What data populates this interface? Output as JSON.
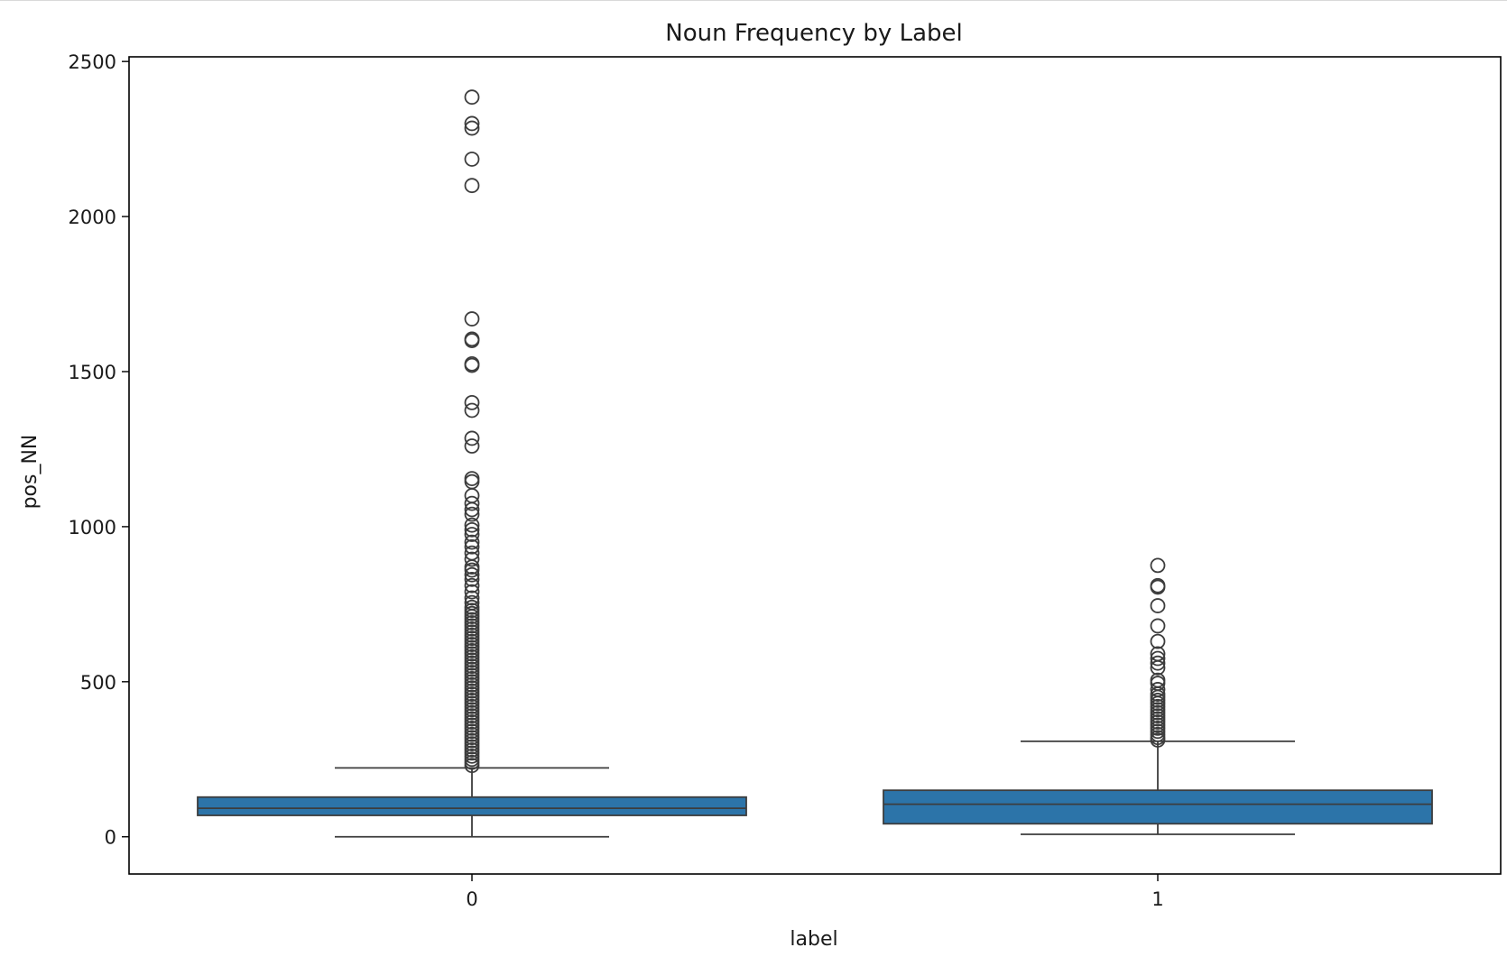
{
  "chart_data": {
    "type": "box",
    "title": "Noun Frequency by Label",
    "xlabel": "label",
    "ylabel": "pos_NN",
    "categories": [
      "0",
      "1"
    ],
    "ylim": [
      -120,
      2515
    ],
    "yticks": [
      0,
      500,
      1000,
      1500,
      2000,
      2500
    ],
    "grid": false,
    "legend": "none",
    "colors": {
      "box_fill": "#2c74a9",
      "line": "#3d3d3d",
      "axis": "#000000"
    },
    "boxes": [
      {
        "category": "0",
        "whisker_low": 0,
        "q1": 69,
        "median": 92,
        "q3": 128,
        "whisker_high": 222,
        "outliers": [
          2385,
          2300,
          2285,
          2185,
          2100,
          1670,
          1605,
          1600,
          1525,
          1520,
          1400,
          1375,
          1285,
          1260,
          1155,
          1145,
          1100,
          1075,
          1055,
          1040,
          1005,
          990,
          975,
          950,
          935,
          915,
          895,
          870,
          860,
          845,
          830,
          810,
          790,
          770,
          755,
          740,
          730,
          720,
          710,
          700,
          690,
          680,
          670,
          660,
          650,
          640,
          630,
          620,
          610,
          600,
          590,
          580,
          570,
          560,
          550,
          540,
          530,
          520,
          510,
          500,
          490,
          480,
          470,
          460,
          450,
          440,
          430,
          420,
          410,
          400,
          390,
          380,
          370,
          360,
          350,
          340,
          330,
          320,
          310,
          300,
          290,
          280,
          270,
          260,
          250,
          240,
          230
        ]
      },
      {
        "category": "1",
        "whisker_low": 8,
        "q1": 42,
        "median": 105,
        "q3": 150,
        "whisker_high": 308,
        "outliers": [
          875,
          810,
          805,
          745,
          680,
          630,
          590,
          575,
          560,
          545,
          505,
          495,
          475,
          460,
          450,
          440,
          430,
          420,
          410,
          400,
          390,
          380,
          370,
          360,
          350,
          340,
          330,
          320,
          312
        ]
      }
    ]
  }
}
